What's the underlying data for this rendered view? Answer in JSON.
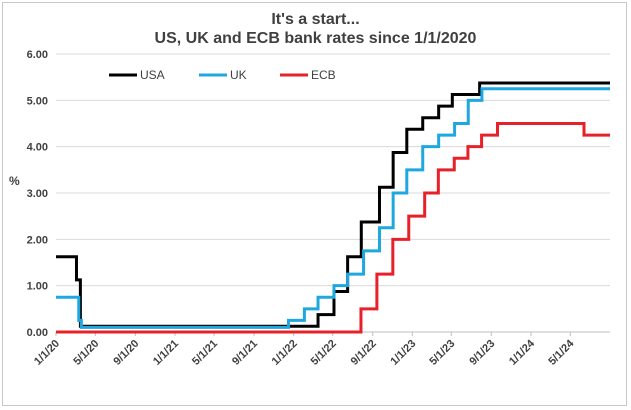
{
  "chart_data": {
    "type": "line",
    "title": "It's a start...",
    "subtitle": "US, UK and ECB bank rates since 1/1/2020",
    "ylabel": "%",
    "xlabel": "",
    "ylim": [
      0,
      6
    ],
    "xlim": [
      "2020-01-01",
      "2024-08-31"
    ],
    "y_ticks": [
      "0.00",
      "1.00",
      "2.00",
      "3.00",
      "4.00",
      "5.00",
      "6.00"
    ],
    "x_ticks": [
      {
        "label": "1/1/20",
        "date": "2020-01-01"
      },
      {
        "label": "5/1/20",
        "date": "2020-05-01"
      },
      {
        "label": "9/1/20",
        "date": "2020-09-01"
      },
      {
        "label": "1/1/21",
        "date": "2021-01-01"
      },
      {
        "label": "5/1/21",
        "date": "2021-05-01"
      },
      {
        "label": "9/1/21",
        "date": "2021-09-01"
      },
      {
        "label": "1/1/22",
        "date": "2022-01-01"
      },
      {
        "label": "5/1/22",
        "date": "2022-05-01"
      },
      {
        "label": "9/1/22",
        "date": "2022-09-01"
      },
      {
        "label": "1/1/23",
        "date": "2023-01-01"
      },
      {
        "label": "5/1/23",
        "date": "2023-05-01"
      },
      {
        "label": "9/1/23",
        "date": "2023-09-01"
      },
      {
        "label": "1/1/24",
        "date": "2024-01-01"
      },
      {
        "label": "5/1/24",
        "date": "2024-05-01"
      }
    ],
    "grid": true,
    "legend_position": "top-left",
    "series": [
      {
        "name": "USA",
        "color": "#000000",
        "steps": [
          [
            "2020-01-01",
            1.625
          ],
          [
            "2020-03-04",
            1.125
          ],
          [
            "2020-03-16",
            0.125
          ],
          [
            "2022-03-17",
            0.375
          ],
          [
            "2022-05-05",
            0.875
          ],
          [
            "2022-06-16",
            1.625
          ],
          [
            "2022-07-28",
            2.375
          ],
          [
            "2022-09-22",
            3.125
          ],
          [
            "2022-11-03",
            3.875
          ],
          [
            "2022-12-15",
            4.375
          ],
          [
            "2023-02-02",
            4.625
          ],
          [
            "2023-03-23",
            4.875
          ],
          [
            "2023-05-04",
            5.125
          ],
          [
            "2023-07-27",
            5.375
          ],
          [
            "2024-08-31",
            5.375
          ]
        ]
      },
      {
        "name": "UK",
        "color": "#1fa7df",
        "steps": [
          [
            "2020-01-01",
            0.75
          ],
          [
            "2020-03-11",
            0.25
          ],
          [
            "2020-03-19",
            0.1
          ],
          [
            "2021-12-16",
            0.25
          ],
          [
            "2022-02-03",
            0.5
          ],
          [
            "2022-03-17",
            0.75
          ],
          [
            "2022-05-05",
            1.0
          ],
          [
            "2022-06-16",
            1.25
          ],
          [
            "2022-08-04",
            1.75
          ],
          [
            "2022-09-22",
            2.25
          ],
          [
            "2022-11-03",
            3.0
          ],
          [
            "2022-12-15",
            3.5
          ],
          [
            "2023-02-02",
            4.0
          ],
          [
            "2023-03-23",
            4.25
          ],
          [
            "2023-05-11",
            4.5
          ],
          [
            "2023-06-22",
            5.0
          ],
          [
            "2023-08-03",
            5.25
          ],
          [
            "2024-08-31",
            5.25
          ]
        ]
      },
      {
        "name": "ECB",
        "color": "#e8202a",
        "steps": [
          [
            "2020-01-01",
            0.0
          ],
          [
            "2022-07-27",
            0.5
          ],
          [
            "2022-09-14",
            1.25
          ],
          [
            "2022-11-02",
            2.0
          ],
          [
            "2022-12-21",
            2.5
          ],
          [
            "2023-02-08",
            3.0
          ],
          [
            "2023-03-22",
            3.5
          ],
          [
            "2023-05-10",
            3.75
          ],
          [
            "2023-06-21",
            4.0
          ],
          [
            "2023-08-02",
            4.25
          ],
          [
            "2023-09-20",
            4.5
          ],
          [
            "2024-06-12",
            4.25
          ],
          [
            "2024-08-31",
            4.25
          ]
        ]
      }
    ]
  }
}
